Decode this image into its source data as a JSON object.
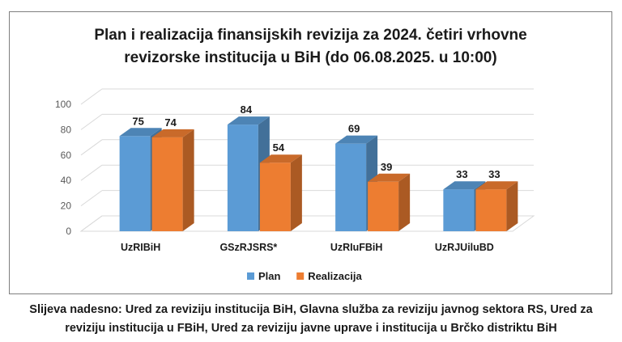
{
  "chart_data": {
    "type": "bar",
    "title_lines": [
      "Plan i realizacija finansijskih revizija za 2024. četiri vrhovne",
      "revizorske institucija u BiH (do 06.08.2025.  u 10:00)"
    ],
    "categories": [
      "UzRIBiH",
      "GSzRJSRS*",
      "UzRIuFBiH",
      "UzRJUiluBD"
    ],
    "series": [
      {
        "name": "Plan",
        "values": [
          75,
          84,
          69,
          33
        ],
        "color": "#5b9bd5"
      },
      {
        "name": "Realizacija",
        "values": [
          74,
          54,
          39,
          33
        ],
        "color": "#ed7d31"
      }
    ],
    "ylim": [
      0,
      100
    ],
    "yticks": [
      "0",
      "20",
      "40",
      "60",
      "80",
      "100"
    ],
    "grid": true,
    "three_d": true,
    "legend_position": "bottom"
  },
  "caption_lines": [
    "Slijeva nadesno: Ured za reviziju institucija BiH, Glavna služba za reviziju javnog sektora RS, Ured za",
    "reviziju institucija u FBiH, Ured za reviziju javne uprave i institucija u Brčko distriktu BiH"
  ]
}
